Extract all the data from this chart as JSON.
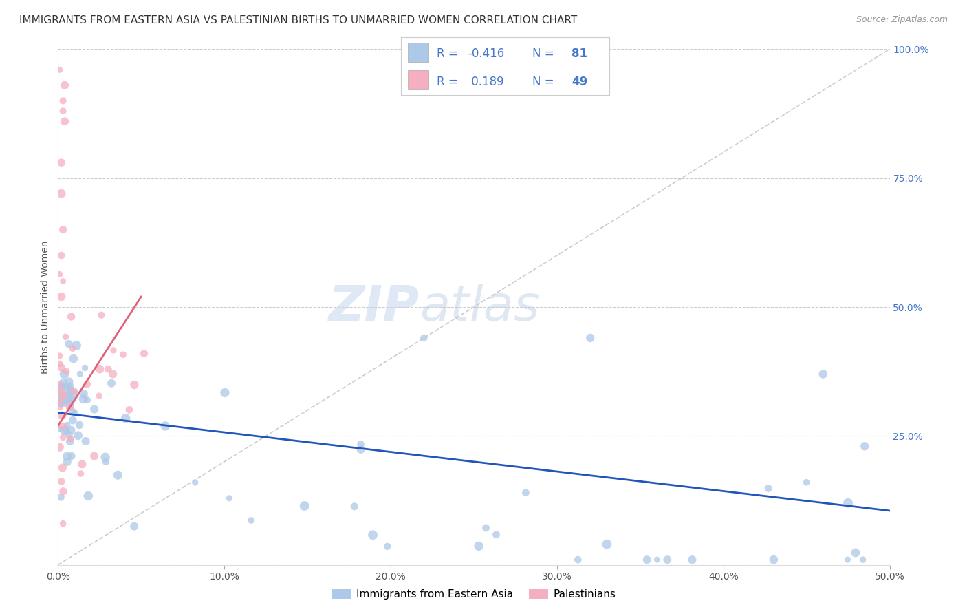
{
  "title": "IMMIGRANTS FROM EASTERN ASIA VS PALESTINIAN BIRTHS TO UNMARRIED WOMEN CORRELATION CHART",
  "source": "Source: ZipAtlas.com",
  "ylabel": "Births to Unmarried Women",
  "xlim": [
    0.0,
    0.5
  ],
  "ylim": [
    0.0,
    1.0
  ],
  "yticks": [
    0.0,
    0.25,
    0.5,
    0.75,
    1.0
  ],
  "yticklabels": [
    "",
    "25.0%",
    "50.0%",
    "75.0%",
    "100.0%"
  ],
  "xticks": [
    0.0,
    0.1,
    0.2,
    0.3,
    0.4,
    0.5
  ],
  "xticklabels": [
    "0.0%",
    "10.0%",
    "20.0%",
    "30.0%",
    "40.0%",
    "50.0%"
  ],
  "color_blue": "#adc8e8",
  "color_pink": "#f5afc0",
  "line_blue": "#2255bb",
  "line_pink": "#e0607a",
  "watermark_zip": "ZIP",
  "watermark_atlas": "atlas",
  "grid_color": "#cccccc",
  "background_color": "#ffffff",
  "title_fontsize": 11,
  "axis_label_fontsize": 10,
  "tick_fontsize": 10,
  "legend_color": "#4477cc",
  "source_color": "#999999"
}
